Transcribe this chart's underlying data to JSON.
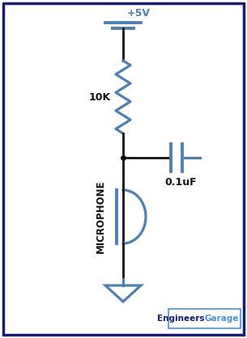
{
  "bg_color": "#ffffff",
  "border_color": "#1a1a6e",
  "circuit_color": "#5080b0",
  "wire_color": "#111111",
  "text_color": "#111111",
  "vcc_label": "+5V",
  "resistor_label": "10K",
  "capacitor_label": "0.1uF",
  "mic_label": "MICROPHONE",
  "brand_engineers": "Engineers",
  "brand_garage": "Garage",
  "brand_color_eng": "#1a1a6e",
  "brand_color_gar": "#4a90d9",
  "figsize": [
    3.05,
    4.18
  ],
  "dpi": 100
}
